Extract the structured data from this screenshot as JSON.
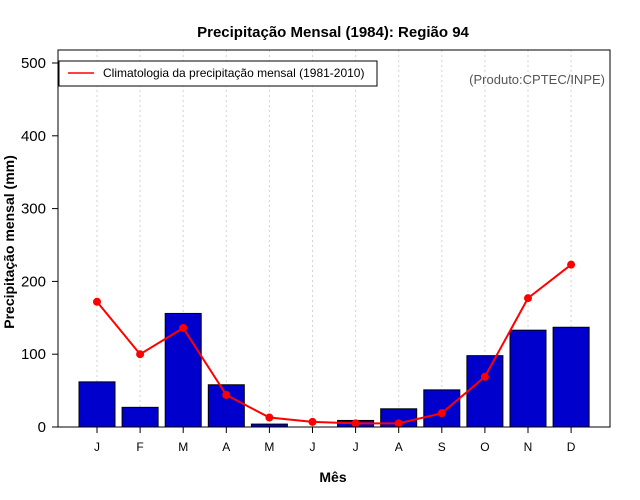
{
  "chart_data": {
    "type": "bar",
    "title": "Precipitação Mensal (1984): Região 94",
    "xlabel": "Mês",
    "ylabel": "Precipitação mensal (mm)",
    "ylim": [
      0,
      500
    ],
    "yticks": [
      0,
      100,
      200,
      300,
      400,
      500
    ],
    "categories": [
      "J",
      "F",
      "M",
      "A",
      "M",
      "J",
      "J",
      "A",
      "S",
      "O",
      "N",
      "D"
    ],
    "series": [
      {
        "name": "Precipitação mensal (1984)",
        "type": "bar",
        "color": "#0000cd",
        "values": [
          62,
          27,
          156,
          58,
          4,
          0,
          9,
          25,
          51,
          98,
          133,
          137
        ]
      },
      {
        "name": "Climatologia da precipitação mensal (1981-2010)",
        "type": "line",
        "color": "#ff0000",
        "values": [
          172,
          100,
          136,
          44,
          13,
          7,
          5,
          5,
          19,
          69,
          177,
          223
        ]
      }
    ],
    "legend": {
      "position": "top-left",
      "entries": [
        "Climatologia da precipitação mensal (1981-2010)"
      ]
    },
    "annotation": "(Produto:CPTEC/INPE)",
    "grid": "vertical-dotted"
  }
}
